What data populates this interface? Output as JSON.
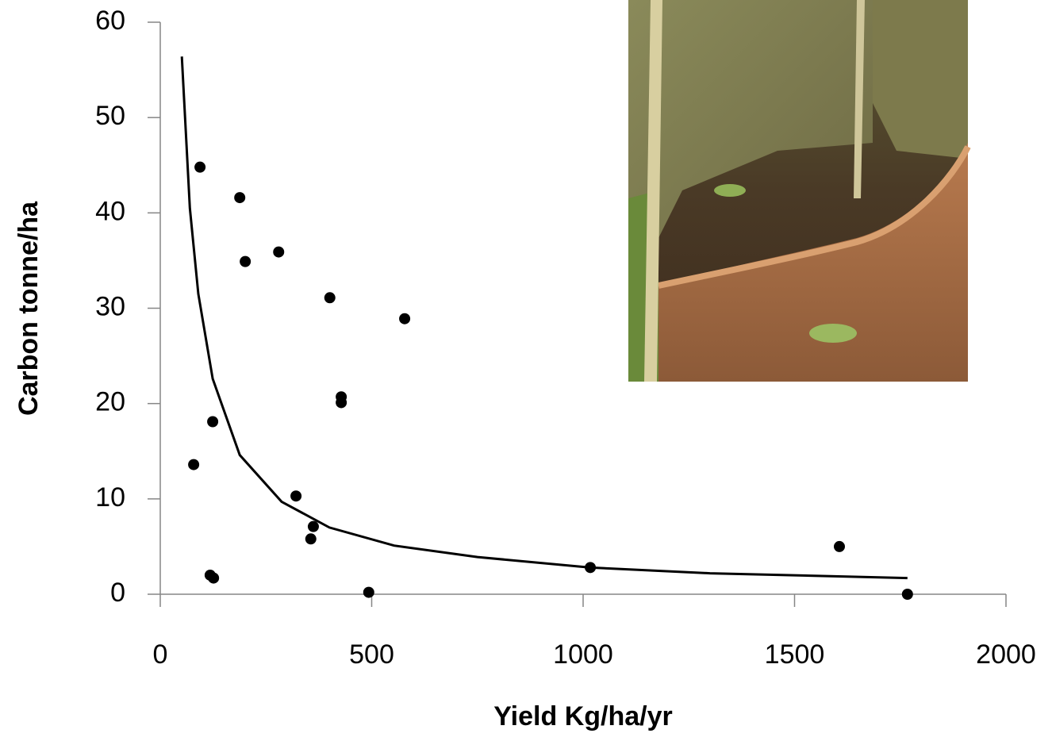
{
  "chart_data": {
    "type": "scatter",
    "x_label": "Yield Kg/ha/yr",
    "y_label": "Carbon tonne/ha",
    "xlim": [
      0,
      2000
    ],
    "xticks": [
      0,
      500,
      1000,
      1500,
      2000
    ],
    "ylim": [
      0,
      60
    ],
    "yticks": [
      0,
      10,
      20,
      30,
      40,
      50,
      60
    ],
    "grid": false,
    "series": [
      {
        "type": "scatter",
        "color": "#000000",
        "x": [
          94,
          188,
          201,
          280,
          401,
          578,
          428,
          428,
          124,
          79,
          321,
          362,
          356,
          118,
          126,
          493,
          1017,
          1606,
          1767
        ],
        "values": [
          44.8,
          41.6,
          34.9,
          35.9,
          31.1,
          28.9,
          20.7,
          20.1,
          18.1,
          13.6,
          10.3,
          7.1,
          5.8,
          2.0,
          1.7,
          0.2,
          2.8,
          5.0,
          0.0
        ]
      },
      {
        "type": "line",
        "color": "#000000",
        "x": [
          51,
          70,
          90,
          124,
          188,
          287,
          400,
          553,
          750,
          1017,
          1300,
          1767
        ],
        "values": [
          56.4,
          40.5,
          31.5,
          22.6,
          14.6,
          9.7,
          7.0,
          5.1,
          3.9,
          2.8,
          2.2,
          1.7
        ]
      }
    ]
  }
}
